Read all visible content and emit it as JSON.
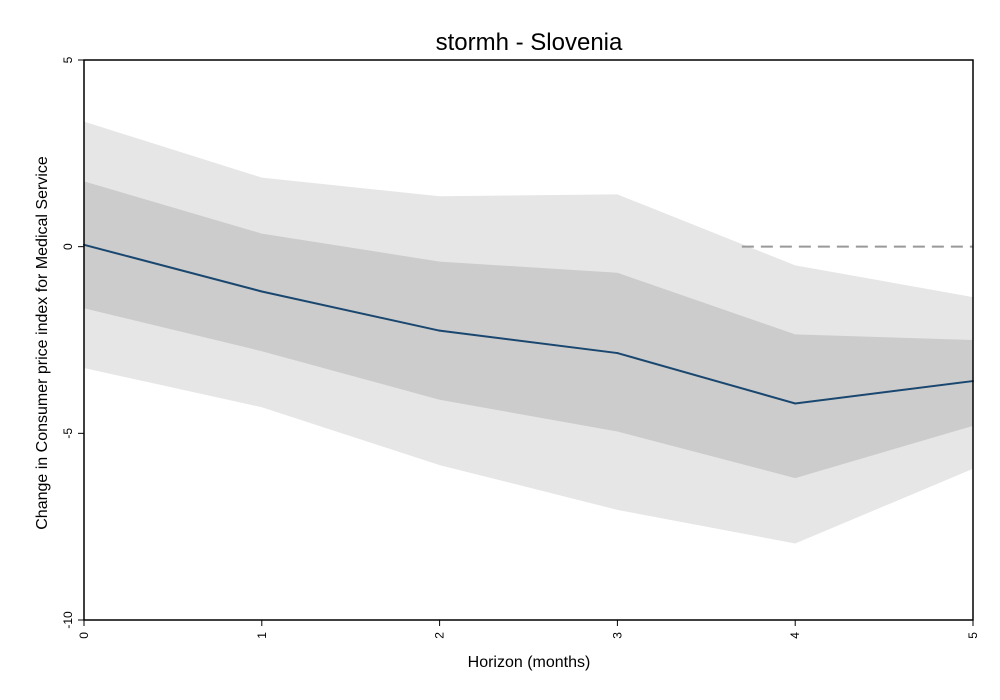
{
  "chart_data": {
    "type": "line",
    "title": "stormh - Slovenia",
    "xlabel": "Horizon (months)",
    "ylabel": "Change in Consumer price index for  Medical Service",
    "x": [
      0,
      1,
      2,
      3,
      4,
      5
    ],
    "xticks": [
      "0",
      "1",
      "2",
      "3",
      "4",
      "5"
    ],
    "yticks": [
      "5",
      "0",
      "-5",
      "-10"
    ],
    "xlim": [
      0,
      5
    ],
    "ylim": [
      -10,
      5
    ],
    "series": [
      {
        "values": [
          0.05,
          -1.2,
          -2.25,
          -2.85,
          -4.2,
          -3.6
        ]
      }
    ],
    "bands": [
      {
        "lower": [
          -3.25,
          -4.3,
          -5.85,
          -7.05,
          -7.95,
          -5.95
        ],
        "upper": [
          3.35,
          1.85,
          1.35,
          1.4,
          -0.5,
          -1.35
        ]
      },
      {
        "lower": [
          -1.65,
          -2.8,
          -4.1,
          -4.95,
          -6.2,
          -4.8
        ],
        "upper": [
          1.75,
          0.35,
          -0.4,
          -0.7,
          -2.35,
          -2.5
        ]
      }
    ],
    "reference_line": {
      "y": 0,
      "style": "dashed",
      "x_range": [
        3.7,
        5
      ]
    },
    "grid": false,
    "colors": {
      "line": "#1a476f",
      "band_outer": "#e6e6e6",
      "band_inner": "#cccccc",
      "reference": "#999999",
      "axis": "#000000"
    }
  }
}
